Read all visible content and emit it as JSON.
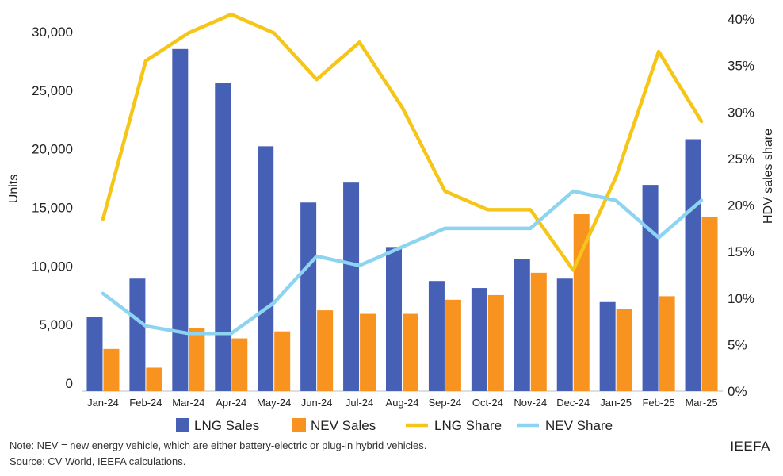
{
  "chart_data": {
    "type": "bar",
    "categories": [
      "Jan-24",
      "Feb-24",
      "Mar-24",
      "Apr-24",
      "May-24",
      "Jun-24",
      "Jul-24",
      "Aug-24",
      "Sep-24",
      "Oct-24",
      "Nov-24",
      "Dec-24",
      "Jan-25",
      "Feb-25",
      "Mar-25"
    ],
    "series": [
      {
        "name": "LNG Sales",
        "type": "bar",
        "axis": "left",
        "color": "#4660b6",
        "values": [
          6300,
          9600,
          29200,
          26300,
          20900,
          16100,
          17800,
          12300,
          9400,
          8800,
          11300,
          9600,
          7600,
          17600,
          21500
        ]
      },
      {
        "name": "NEV Sales",
        "type": "bar",
        "axis": "left",
        "color": "#f7931e",
        "values": [
          3600,
          2000,
          5400,
          4500,
          5100,
          6900,
          6600,
          6600,
          7800,
          8200,
          10100,
          15100,
          7000,
          8100,
          14900
        ]
      },
      {
        "name": "LNG Share",
        "type": "line",
        "axis": "right",
        "color": "#f5c518",
        "values": [
          18.5,
          35.5,
          38.5,
          40.5,
          38.5,
          33.5,
          37.5,
          30.5,
          21.5,
          19.5,
          19.5,
          13.0,
          23.0,
          36.5,
          29.0
        ]
      },
      {
        "name": "NEV Share",
        "type": "line",
        "axis": "right",
        "color": "#8dd4f0",
        "values": [
          10.5,
          7.0,
          6.2,
          6.2,
          9.5,
          14.5,
          13.5,
          15.5,
          17.5,
          17.5,
          17.5,
          21.5,
          20.5,
          16.5,
          20.5
        ]
      }
    ],
    "yticks": [
      "0",
      "5,000",
      "10,000",
      "15,000",
      "20,000",
      "25,000",
      "30,000"
    ],
    "ylim": [
      0,
      30000
    ],
    "y2ticks": [
      "0%",
      "5%",
      "10%",
      "15%",
      "20%",
      "25%",
      "30%",
      "35%",
      "40%"
    ],
    "y2lim": [
      0,
      40
    ],
    "ylabel": "Units",
    "y2label": "HDV sales share",
    "legend_position": "bottom"
  },
  "footer": {
    "note": "Note: NEV = new energy vehicle, which are either battery-electric or plug-in hybrid vehicles.",
    "source": "Source: CV World, IEEFA calculations.",
    "brand": "IEEFA"
  }
}
